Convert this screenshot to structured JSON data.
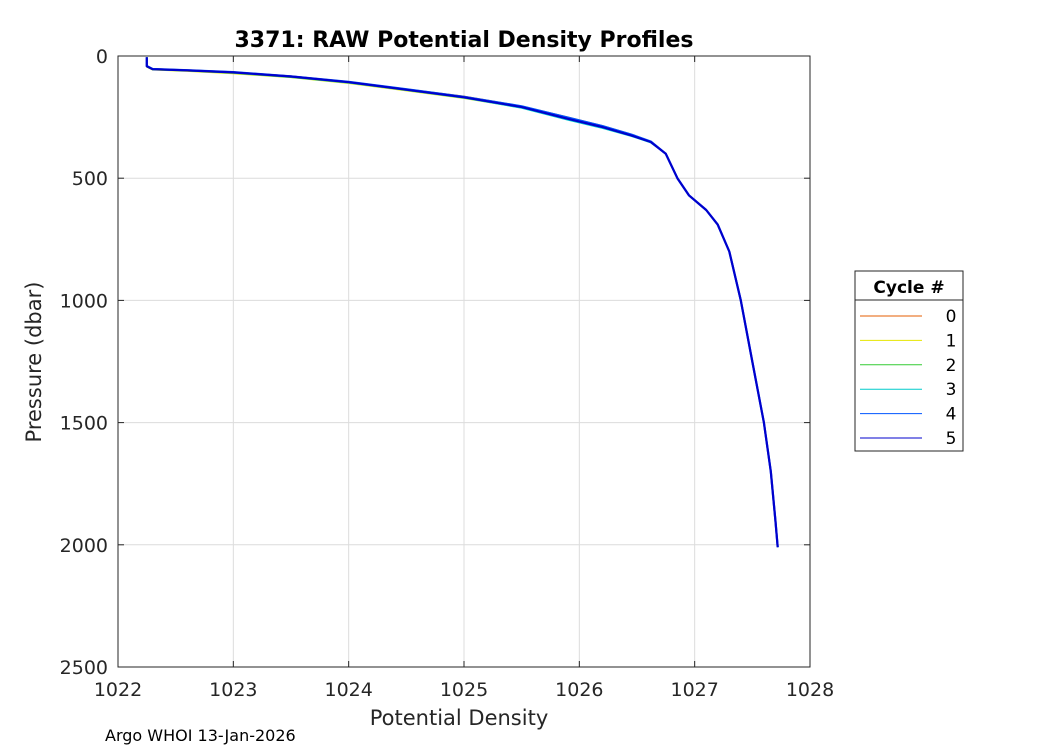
{
  "chart_data": {
    "type": "line",
    "title": "3371: RAW Potential Density Profiles",
    "xlabel": "Potential Density",
    "ylabel": "Pressure (dbar)",
    "xlim": [
      1022,
      1028
    ],
    "ylim": [
      0,
      2500
    ],
    "y_reversed": true,
    "grid": true,
    "xticks": [
      "1022",
      "1023",
      "1024",
      "1025",
      "1026",
      "1027",
      "1028"
    ],
    "yticks": [
      "0",
      "500",
      "1000",
      "1500",
      "2000",
      "2500"
    ],
    "legend": {
      "title": "Cycle #",
      "placement": "outside-right"
    },
    "footer": "Argo WHOI 13-Jan-2026",
    "series": [
      {
        "name": "0",
        "color": "#e65c00",
        "points": [
          [
            1022.25,
            5
          ],
          [
            1022.25,
            40
          ],
          [
            1022.3,
            52
          ],
          [
            1022.6,
            58
          ],
          [
            1023.0,
            66
          ],
          [
            1023.5,
            82
          ],
          [
            1024.0,
            105
          ],
          [
            1024.5,
            135
          ],
          [
            1025.0,
            165
          ],
          [
            1025.5,
            205
          ],
          [
            1025.9,
            250
          ],
          [
            1026.2,
            285
          ],
          [
            1026.45,
            320
          ],
          [
            1026.62,
            350
          ],
          [
            1026.75,
            400
          ],
          [
            1026.85,
            500
          ],
          [
            1026.95,
            570
          ],
          [
            1027.1,
            630
          ],
          [
            1027.2,
            690
          ],
          [
            1027.3,
            800
          ],
          [
            1027.4,
            1000
          ],
          [
            1027.5,
            1250
          ],
          [
            1027.6,
            1500
          ],
          [
            1027.66,
            1700
          ],
          [
            1027.7,
            1900
          ],
          [
            1027.72,
            2010
          ]
        ]
      },
      {
        "name": "1",
        "color": "#e6e600",
        "points": [
          [
            1022.25,
            5
          ],
          [
            1022.25,
            45
          ],
          [
            1022.3,
            57
          ],
          [
            1022.6,
            62
          ],
          [
            1023.0,
            72
          ],
          [
            1023.5,
            88
          ],
          [
            1024.0,
            112
          ],
          [
            1024.5,
            142
          ],
          [
            1025.0,
            173
          ],
          [
            1025.5,
            212
          ],
          [
            1025.9,
            258
          ],
          [
            1026.2,
            292
          ],
          [
            1026.45,
            325
          ],
          [
            1026.62,
            353
          ],
          [
            1026.75,
            400
          ],
          [
            1026.85,
            500
          ],
          [
            1026.95,
            570
          ],
          [
            1027.1,
            630
          ],
          [
            1027.2,
            690
          ],
          [
            1027.3,
            800
          ],
          [
            1027.4,
            1000
          ],
          [
            1027.5,
            1250
          ],
          [
            1027.6,
            1500
          ],
          [
            1027.66,
            1700
          ],
          [
            1027.7,
            1900
          ],
          [
            1027.72,
            2010
          ]
        ]
      },
      {
        "name": "2",
        "color": "#33cc33",
        "points": [
          [
            1022.25,
            5
          ],
          [
            1022.25,
            44
          ],
          [
            1022.3,
            56
          ],
          [
            1022.6,
            61
          ],
          [
            1023.0,
            70
          ],
          [
            1023.5,
            87
          ],
          [
            1024.0,
            110
          ],
          [
            1024.5,
            140
          ],
          [
            1025.0,
            171
          ],
          [
            1025.5,
            210
          ],
          [
            1025.9,
            256
          ],
          [
            1026.2,
            290
          ],
          [
            1026.45,
            323
          ],
          [
            1026.62,
            352
          ],
          [
            1026.75,
            400
          ],
          [
            1026.85,
            500
          ],
          [
            1026.95,
            570
          ],
          [
            1027.1,
            630
          ],
          [
            1027.2,
            690
          ],
          [
            1027.3,
            800
          ],
          [
            1027.4,
            1000
          ],
          [
            1027.5,
            1250
          ],
          [
            1027.6,
            1500
          ],
          [
            1027.66,
            1700
          ],
          [
            1027.7,
            1900
          ],
          [
            1027.72,
            2010
          ]
        ]
      },
      {
        "name": "3",
        "color": "#00cccc",
        "points": [
          [
            1022.25,
            5
          ],
          [
            1022.25,
            43
          ],
          [
            1022.3,
            55
          ],
          [
            1022.6,
            60
          ],
          [
            1023.0,
            69
          ],
          [
            1023.5,
            86
          ],
          [
            1024.0,
            110
          ],
          [
            1024.5,
            140
          ],
          [
            1025.0,
            172
          ],
          [
            1025.5,
            213
          ],
          [
            1025.9,
            262
          ],
          [
            1026.2,
            296
          ],
          [
            1026.45,
            328
          ],
          [
            1026.62,
            355
          ],
          [
            1026.75,
            400
          ],
          [
            1026.85,
            500
          ],
          [
            1026.95,
            570
          ],
          [
            1027.1,
            630
          ],
          [
            1027.2,
            690
          ],
          [
            1027.3,
            800
          ],
          [
            1027.4,
            1000
          ],
          [
            1027.5,
            1250
          ],
          [
            1027.6,
            1500
          ],
          [
            1027.66,
            1700
          ],
          [
            1027.7,
            1900
          ],
          [
            1027.72,
            2010
          ]
        ]
      },
      {
        "name": "4",
        "color": "#0055ff",
        "points": [
          [
            1022.25,
            5
          ],
          [
            1022.25,
            41
          ],
          [
            1022.3,
            53
          ],
          [
            1022.6,
            58
          ],
          [
            1023.0,
            66
          ],
          [
            1023.5,
            83
          ],
          [
            1024.0,
            106
          ],
          [
            1024.5,
            136
          ],
          [
            1025.0,
            167
          ],
          [
            1025.5,
            206
          ],
          [
            1025.9,
            252
          ],
          [
            1026.2,
            287
          ],
          [
            1026.45,
            321
          ],
          [
            1026.62,
            350
          ],
          [
            1026.75,
            400
          ],
          [
            1026.85,
            500
          ],
          [
            1026.95,
            570
          ],
          [
            1027.1,
            630
          ],
          [
            1027.2,
            690
          ],
          [
            1027.3,
            800
          ],
          [
            1027.4,
            1000
          ],
          [
            1027.5,
            1250
          ],
          [
            1027.6,
            1500
          ],
          [
            1027.66,
            1700
          ],
          [
            1027.7,
            1900
          ],
          [
            1027.72,
            2010
          ]
        ]
      },
      {
        "name": "5",
        "color": "#0000cc",
        "points": [
          [
            1022.25,
            5
          ],
          [
            1022.25,
            42
          ],
          [
            1022.3,
            54
          ],
          [
            1022.6,
            59
          ],
          [
            1023.0,
            67
          ],
          [
            1023.5,
            84
          ],
          [
            1024.0,
            107
          ],
          [
            1024.5,
            138
          ],
          [
            1025.0,
            169
          ],
          [
            1025.5,
            209
          ],
          [
            1025.9,
            257
          ],
          [
            1026.2,
            291
          ],
          [
            1026.45,
            325
          ],
          [
            1026.62,
            352
          ],
          [
            1026.75,
            400
          ],
          [
            1026.85,
            500
          ],
          [
            1026.95,
            570
          ],
          [
            1027.1,
            630
          ],
          [
            1027.2,
            690
          ],
          [
            1027.3,
            800
          ],
          [
            1027.4,
            1000
          ],
          [
            1027.5,
            1250
          ],
          [
            1027.6,
            1500
          ],
          [
            1027.66,
            1700
          ],
          [
            1027.7,
            1900
          ],
          [
            1027.72,
            2010
          ]
        ]
      }
    ]
  }
}
